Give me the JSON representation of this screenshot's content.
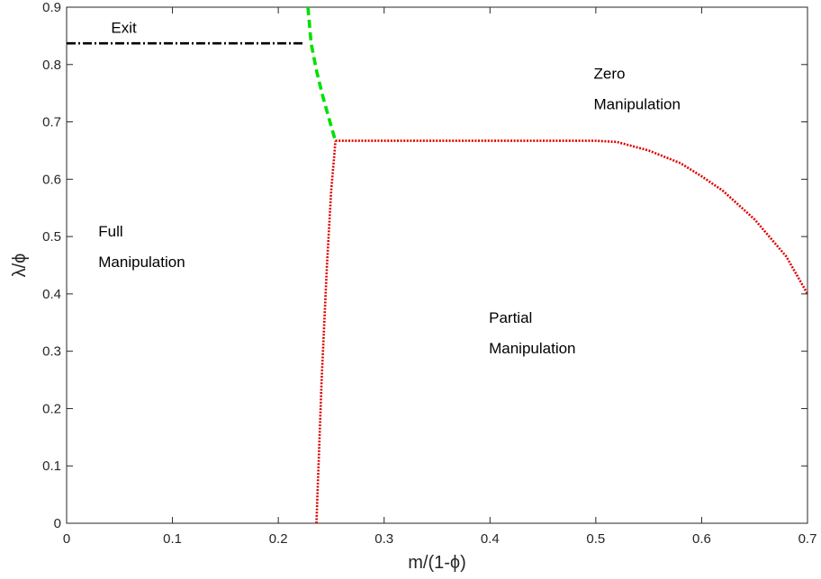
{
  "chart_data": {
    "type": "line",
    "xlabel": "m/(1-ϕ)",
    "ylabel": "λ/ϕ",
    "xlim": [
      0,
      0.7
    ],
    "ylim": [
      0,
      0.9
    ],
    "x_ticks": [
      "0",
      "0.1",
      "0.2",
      "0.3",
      "0.4",
      "0.5",
      "0.6",
      "0.7"
    ],
    "y_ticks": [
      "0",
      "0.1",
      "0.2",
      "0.3",
      "0.4",
      "0.5",
      "0.6",
      "0.7",
      "0.8",
      "0.9"
    ],
    "grid": false,
    "series": [
      {
        "style": "dash-dot",
        "color": "#000000",
        "x": [
          0,
          0.225
        ],
        "y": [
          0.837,
          0.837
        ]
      },
      {
        "style": "dashed",
        "color": "#00e000",
        "x": [
          0.228,
          0.231,
          0.236,
          0.242,
          0.248,
          0.254
        ],
        "y": [
          0.9,
          0.837,
          0.79,
          0.745,
          0.705,
          0.667
        ]
      },
      {
        "style": "dotted",
        "color": "#e00000",
        "x": [
          0.236,
          0.241,
          0.246,
          0.25,
          0.253,
          0.254
        ],
        "y": [
          0,
          0.25,
          0.45,
          0.58,
          0.645,
          0.667
        ]
      },
      {
        "style": "dotted",
        "color": "#e00000",
        "x": [
          0.254,
          0.3,
          0.4,
          0.5,
          0.52,
          0.55,
          0.58,
          0.6,
          0.62,
          0.65,
          0.68,
          0.7
        ],
        "y": [
          0.667,
          0.667,
          0.667,
          0.667,
          0.665,
          0.65,
          0.628,
          0.605,
          0.58,
          0.53,
          0.465,
          0.4
        ]
      }
    ],
    "annotations": [
      {
        "lines": [
          "Exit"
        ],
        "x": 0.042,
        "y": 0.855
      },
      {
        "lines": [
          "Zero",
          "Manipulation"
        ],
        "x": 0.498,
        "y": 0.775
      },
      {
        "lines": [
          "Full",
          "Manipulation"
        ],
        "x": 0.03,
        "y": 0.5
      },
      {
        "lines": [
          "Partial",
          "Manipulation"
        ],
        "x": 0.399,
        "y": 0.35
      }
    ]
  }
}
